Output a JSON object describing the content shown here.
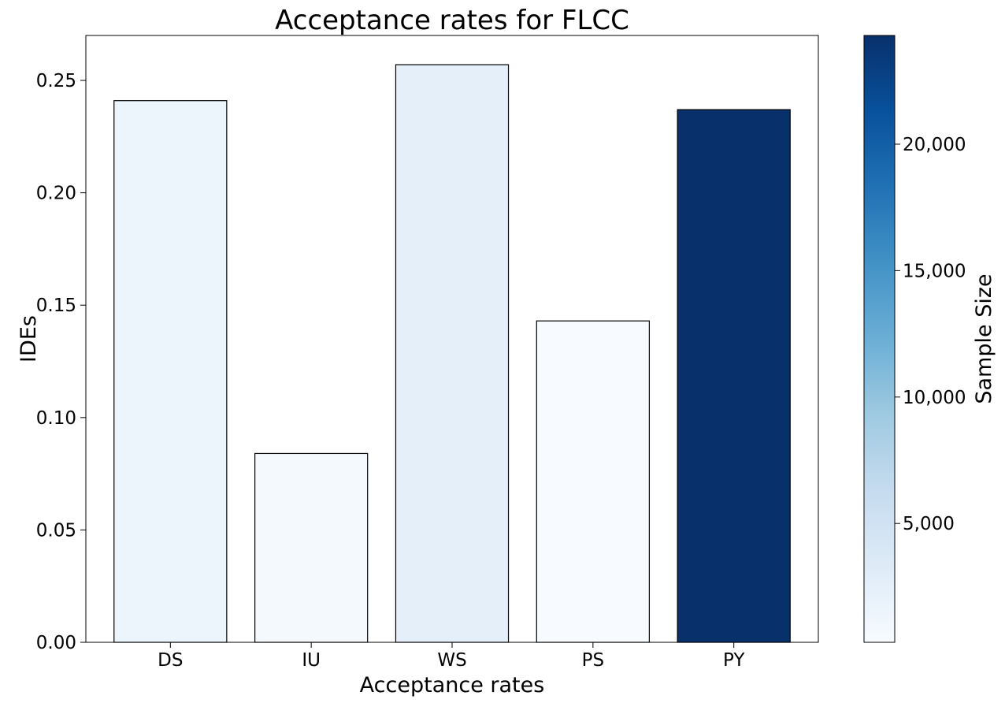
{
  "chart_data": {
    "type": "bar",
    "title": "Acceptance rates for FLCC",
    "xlabel": "Acceptance rates",
    "ylabel": "IDEs",
    "categories": [
      "DS",
      "IU",
      "WS",
      "PS",
      "PY"
    ],
    "values": [
      0.241,
      0.084,
      0.257,
      0.143,
      0.237
    ],
    "sample_sizes": [
      1500,
      700,
      2500,
      300,
      24300
    ],
    "ylim": [
      0,
      0.27
    ],
    "yticks": [
      0.0,
      0.05,
      0.1,
      0.15,
      0.2,
      0.25
    ],
    "ytick_labels": [
      "0.00",
      "0.05",
      "0.10",
      "0.15",
      "0.20",
      "0.25"
    ],
    "grid": false,
    "colorbar": {
      "label": "Sample Size",
      "colormap": "Blues",
      "range": [
        300,
        24300
      ],
      "ticks": [
        5000,
        10000,
        15000,
        20000
      ],
      "tick_labels": [
        "5,000",
        "10,000",
        "15,000",
        "20,000"
      ],
      "color_stops": [
        "#f7fbff",
        "#deebf7",
        "#c6dbef",
        "#9ecae1",
        "#6baed6",
        "#4292c6",
        "#2171b5",
        "#08519c",
        "#08306b"
      ]
    },
    "bar_edge_color": "#000000"
  }
}
